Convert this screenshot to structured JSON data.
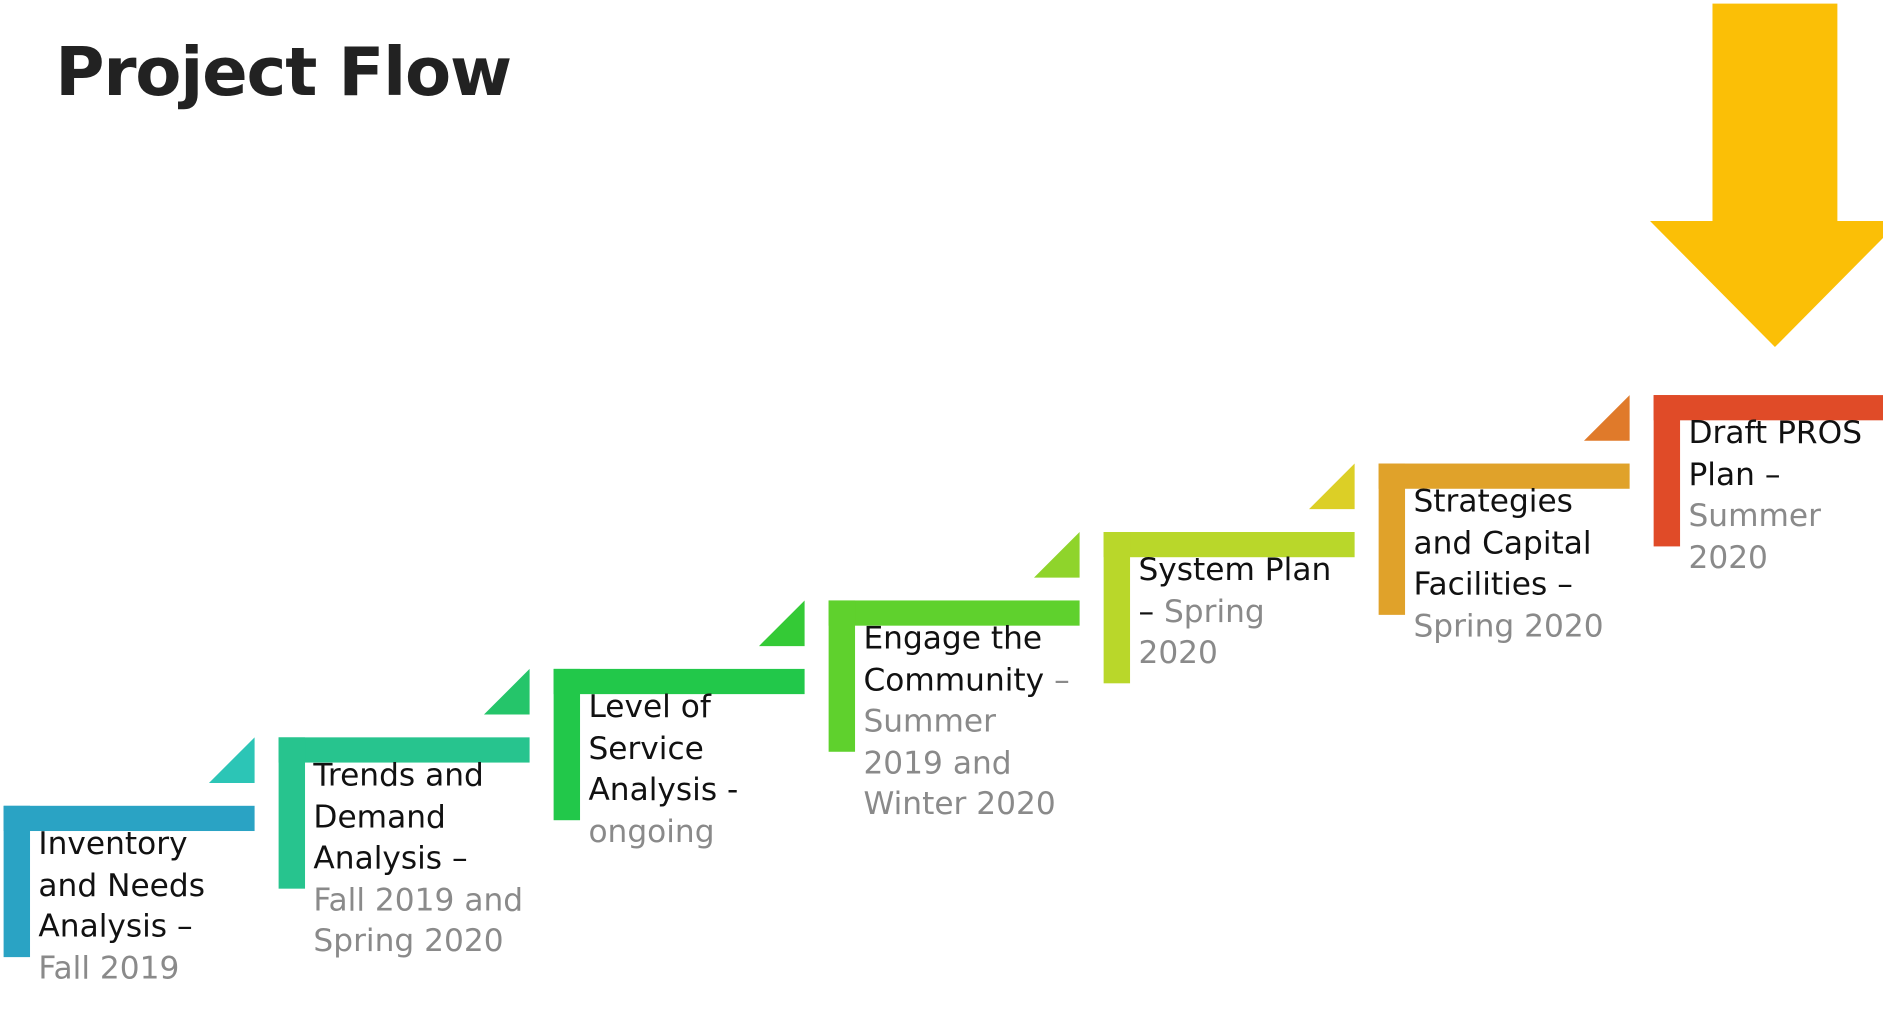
{
  "title": "Project Flow",
  "steps": [
    {
      "label": "Inventory and Needs Analysis –",
      "date": "Fall 2019",
      "color": "#2aa3c4",
      "accent": "#2cc5b6"
    },
    {
      "label": "Trends and Demand Analysis –",
      "date": "Fall 2019 and Spring 2020",
      "color": "#27c48e",
      "accent": "#25c56a"
    },
    {
      "label": "Level of Service Analysis -",
      "date": "ongoing",
      "color": "#22c84a",
      "accent": "#34ca36"
    },
    {
      "label": "Engage the Community",
      "date": "– Summer 2019 and Winter 2020",
      "color": "#5fd12d",
      "accent": "#8fd42b"
    },
    {
      "label": "System Plan –",
      "date": "Spring 2020",
      "color": "#b9d72a",
      "accent": "#dccf26"
    },
    {
      "label": "Strategies and Capital Facilities –",
      "date": "Spring 2020",
      "color": "#e0a22a",
      "accent": "#e07a2a"
    },
    {
      "label": "Draft PROS Plan –",
      "date": "Summer 2020",
      "color": "#e04b28",
      "accent": null
    }
  ],
  "arrow_color": "#fbbf06"
}
